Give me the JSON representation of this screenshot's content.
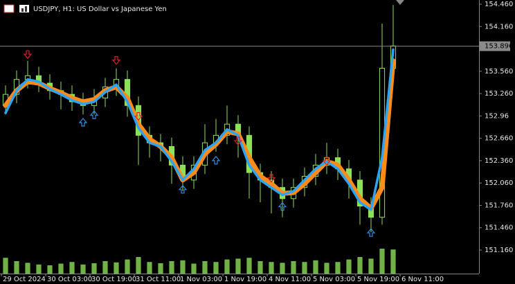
{
  "chart_data": {
    "type": "candlestick",
    "title": "USDJPY, H1:  US Dollar vs Japanese Yen",
    "x": [
      0,
      1,
      2,
      3,
      4,
      5,
      6,
      7,
      8,
      9,
      10,
      11,
      12,
      13,
      14,
      15,
      16,
      17,
      18,
      19,
      20,
      21,
      22,
      23,
      24,
      25,
      26,
      27,
      28,
      29,
      30,
      31,
      32,
      33,
      34,
      35
    ],
    "open": [
      153.1,
      153.25,
      153.45,
      153.5,
      153.4,
      153.3,
      153.25,
      153.15,
      153.1,
      153.2,
      153.35,
      153.45,
      153.1,
      152.7,
      152.6,
      152.55,
      152.3,
      152.1,
      152.3,
      152.6,
      152.7,
      152.85,
      152.7,
      152.2,
      152.1,
      152.0,
      151.85,
      152.0,
      152.15,
      152.3,
      152.4,
      152.25,
      152.1,
      151.75,
      151.6,
      153.6
    ],
    "high": [
      153.37,
      153.57,
      153.7,
      153.62,
      153.52,
      153.42,
      153.37,
      153.27,
      153.32,
      153.47,
      153.6,
      153.57,
      153.22,
      152.82,
      152.72,
      152.67,
      152.42,
      152.42,
      152.85,
      152.92,
      153.1,
      152.97,
      152.82,
      152.32,
      152.22,
      152.12,
      152.12,
      152.27,
      152.45,
      152.6,
      152.52,
      152.37,
      152.22,
      151.87,
      154.2,
      154.45
    ],
    "low": [
      152.98,
      153.13,
      153.33,
      153.28,
      153.18,
      153.05,
      153.03,
      152.98,
      152.98,
      153.08,
      153.23,
      152.95,
      152.3,
      152.4,
      152.35,
      152.05,
      151.95,
      151.98,
      152.18,
      152.48,
      152.58,
      152.4,
      151.85,
      151.8,
      151.65,
      151.6,
      151.73,
      151.88,
      152.03,
      152.18,
      152.1,
      151.85,
      151.5,
      151.4,
      151.5,
      153.55
    ],
    "close": [
      153.25,
      153.45,
      153.5,
      153.4,
      153.3,
      153.25,
      153.15,
      153.1,
      153.2,
      153.35,
      153.45,
      153.1,
      152.7,
      152.6,
      152.55,
      152.3,
      152.1,
      152.3,
      152.6,
      152.7,
      152.85,
      152.7,
      152.2,
      152.1,
      152.0,
      151.85,
      152.0,
      152.15,
      152.3,
      152.4,
      152.25,
      152.1,
      151.75,
      151.6,
      153.6,
      153.9
    ],
    "color": "#8ee05a",
    "moving_averages": [
      {
        "color": "#ff8c1a",
        "values": [
          153.1,
          153.3,
          153.42,
          153.4,
          153.33,
          153.27,
          153.2,
          153.15,
          153.18,
          153.3,
          153.35,
          153.2,
          152.85,
          152.65,
          152.55,
          152.4,
          152.1,
          152.2,
          152.45,
          152.58,
          152.75,
          152.72,
          152.4,
          152.15,
          152.05,
          151.92,
          151.93,
          152.05,
          152.2,
          152.35,
          152.3,
          152.1,
          151.85,
          151.72,
          152.0,
          153.7
        ]
      },
      {
        "color": "#2ea3f2",
        "values": [
          153.0,
          153.3,
          153.45,
          153.42,
          153.32,
          153.25,
          153.17,
          153.12,
          153.15,
          153.28,
          153.38,
          153.15,
          152.8,
          152.6,
          152.55,
          152.35,
          152.1,
          152.25,
          152.5,
          152.6,
          152.78,
          152.7,
          152.3,
          152.1,
          152.0,
          151.9,
          151.95,
          152.1,
          152.25,
          152.35,
          152.25,
          152.05,
          151.8,
          151.7,
          152.4,
          153.85
        ]
      }
    ],
    "sell_signals": {
      "color": "#e02020",
      "x": [
        2,
        10,
        12,
        21,
        24,
        29
      ],
      "values": [
        153.78,
        153.7,
        152.95,
        152.62,
        152.12,
        152.35
      ]
    },
    "buy_signals": {
      "color": "#2e8ee0",
      "x": [
        7,
        8,
        16,
        19,
        25,
        33
      ],
      "values": [
        152.88,
        152.98,
        151.98,
        152.37,
        151.75,
        151.4
      ]
    },
    "volumes": [
      38,
      30,
      26,
      22,
      20,
      24,
      28,
      22,
      25,
      30,
      27,
      34,
      40,
      28,
      25,
      30,
      32,
      24,
      30,
      28,
      34,
      36,
      38,
      30,
      28,
      26,
      30,
      28,
      32,
      26,
      28,
      34,
      40,
      36,
      60,
      58
    ],
    "vlim": [
      0,
      100
    ],
    "current_price": 153.896,
    "ylim": [
      150.844,
      154.516
    ],
    "yticks": [
      {
        "value": 151.16,
        "label": "151.160"
      },
      {
        "value": 151.46,
        "label": "151.460"
      },
      {
        "value": 151.76,
        "label": "151.760"
      },
      {
        "value": 152.06,
        "label": "152.060"
      },
      {
        "value": 152.36,
        "label": "152.360"
      },
      {
        "value": 152.66,
        "label": "152.660"
      },
      152.96,
      {
        "value": 153.26,
        "label": "153.260"
      },
      {
        "value": 153.56,
        "label": "153.560"
      },
      {
        "value": 154.16,
        "label": "154.160"
      },
      {
        "value": 154.46,
        "label": "154.460"
      }
    ],
    "xlim": [
      -0.5,
      42.75
    ],
    "xticks": [
      {
        "value": -0.375,
        "label": "29 Oct 2024"
      },
      {
        "value": 3.625,
        "label": "30 Oct 03:00"
      },
      {
        "value": 7.625,
        "label": "30 Oct 19:00"
      },
      {
        "value": 11.625,
        "label": "31 Oct 11:00"
      },
      {
        "value": 15.625,
        "label": "1 Nov 03:00"
      },
      {
        "value": 19.625,
        "label": "1 Nov 19:00"
      },
      {
        "value": 23.625,
        "label": "4 Nov 11:00"
      },
      {
        "value": 27.625,
        "label": "5 Nov 03:00"
      },
      {
        "value": 31.625,
        "label": "5 Nov 19:00"
      },
      {
        "value": 35.625,
        "label": "6 Nov 11:00"
      }
    ]
  }
}
